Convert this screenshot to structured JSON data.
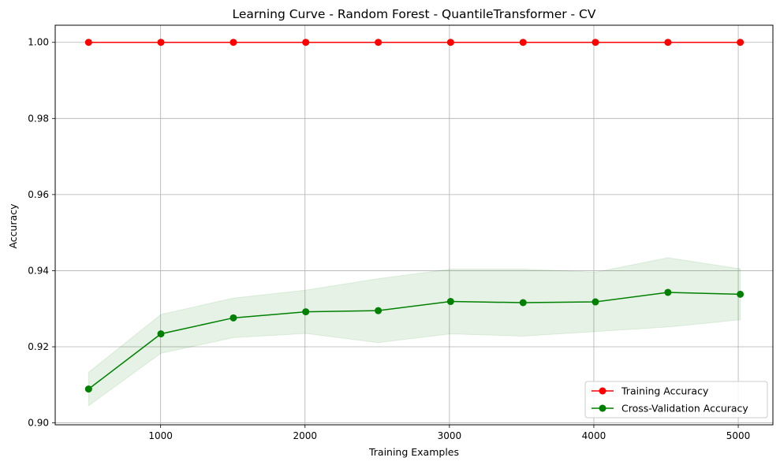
{
  "chart_data": {
    "type": "line",
    "title": "Learning Curve - Random Forest - QuantileTransformer - CV",
    "xlabel": "Training Examples",
    "ylabel": "Accuracy",
    "xlim": [
      270,
      5240
    ],
    "ylim": [
      0.8995,
      1.0045
    ],
    "xticks": [
      1000,
      2000,
      3000,
      4000,
      5000
    ],
    "xtick_labels": [
      "1000",
      "2000",
      "3000",
      "4000",
      "5000"
    ],
    "yticks": [
      0.9,
      0.92,
      0.94,
      0.96,
      0.98,
      1.0
    ],
    "ytick_labels": [
      "0.90",
      "0.92",
      "0.94",
      "0.96",
      "0.98",
      "1.00"
    ],
    "grid": true,
    "legend_position": "bottom-right",
    "x": [
      501,
      1002,
      1504,
      2005,
      2507,
      3008,
      3510,
      4011,
      4513,
      5014
    ],
    "series": [
      {
        "name": "Training Accuracy",
        "color": "#ff0000",
        "values": [
          1.0,
          1.0,
          1.0,
          1.0,
          1.0,
          1.0,
          1.0,
          1.0,
          1.0,
          1.0
        ],
        "band_lower": [
          1.0,
          1.0,
          1.0,
          1.0,
          1.0,
          1.0,
          1.0,
          1.0,
          1.0,
          1.0
        ],
        "band_upper": [
          1.0,
          1.0,
          1.0,
          1.0,
          1.0,
          1.0,
          1.0,
          1.0,
          1.0,
          1.0
        ]
      },
      {
        "name": "Cross-Validation Accuracy",
        "color": "#008000",
        "band_color": "#008000",
        "values": [
          0.9089,
          0.9234,
          0.9276,
          0.9292,
          0.9295,
          0.9319,
          0.9316,
          0.9318,
          0.9343,
          0.9338
        ],
        "band_lower": [
          0.9045,
          0.9183,
          0.9224,
          0.9235,
          0.9211,
          0.9234,
          0.9228,
          0.924,
          0.9252,
          0.9271
        ],
        "band_upper": [
          0.9133,
          0.9285,
          0.9328,
          0.9349,
          0.9379,
          0.9404,
          0.9404,
          0.9396,
          0.9434,
          0.9405
        ]
      }
    ]
  }
}
